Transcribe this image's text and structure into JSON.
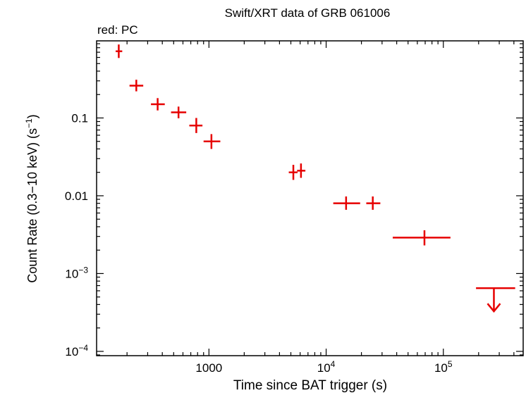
{
  "chart_data": {
    "type": "scatter",
    "title": "Swift/XRT data of GRB 061006",
    "subtitle": "red: PC",
    "xlabel": "Time since BAT trigger (s)",
    "ylabel": "Count Rate (0.3−10 keV) (s",
    "ylabel_sup": "−1",
    "ylabel_close": ")",
    "x_scale": "log",
    "y_scale": "log",
    "xlim": [
      110,
      480000
    ],
    "ylim": [
      8.8e-05,
      0.98
    ],
    "x_ticks": [
      {
        "value": 1000,
        "mantissa": "1000",
        "exp": ""
      },
      {
        "value": 10000,
        "mantissa": "10",
        "exp": "4"
      },
      {
        "value": 100000,
        "mantissa": "10",
        "exp": "5"
      }
    ],
    "y_ticks": [
      {
        "value": 0.1,
        "mantissa": "0.1",
        "exp": ""
      },
      {
        "value": 0.01,
        "mantissa": "0.01",
        "exp": ""
      },
      {
        "value": 0.001,
        "mantissa": "10",
        "exp": "−3"
      },
      {
        "value": 0.0001,
        "mantissa": "10",
        "exp": "−4"
      }
    ],
    "grid": false,
    "color": "#e60000",
    "series": [
      {
        "mode": "PC",
        "points": [
          {
            "x": 170,
            "xlo": 160,
            "xhi": 182,
            "y": 0.72,
            "ylo": 0.59,
            "yhi": 0.88
          },
          {
            "x": 240,
            "xlo": 210,
            "xhi": 275,
            "y": 0.26,
            "ylo": 0.22,
            "yhi": 0.31
          },
          {
            "x": 365,
            "xlo": 320,
            "xhi": 420,
            "y": 0.15,
            "ylo": 0.125,
            "yhi": 0.18
          },
          {
            "x": 550,
            "xlo": 475,
            "xhi": 640,
            "y": 0.118,
            "ylo": 0.099,
            "yhi": 0.14
          },
          {
            "x": 780,
            "xlo": 680,
            "xhi": 880,
            "y": 0.08,
            "ylo": 0.064,
            "yhi": 0.1
          },
          {
            "x": 1050,
            "xlo": 900,
            "xhi": 1250,
            "y": 0.05,
            "ylo": 0.04,
            "yhi": 0.062
          },
          {
            "x": 5250,
            "xlo": 4800,
            "xhi": 5700,
            "y": 0.02,
            "ylo": 0.016,
            "yhi": 0.025
          },
          {
            "x": 6100,
            "xlo": 5650,
            "xhi": 6650,
            "y": 0.021,
            "ylo": 0.017,
            "yhi": 0.026
          },
          {
            "x": 14800,
            "xlo": 11500,
            "xhi": 19500,
            "y": 0.008,
            "ylo": 0.0066,
            "yhi": 0.0098
          },
          {
            "x": 25000,
            "xlo": 22000,
            "xhi": 29000,
            "y": 0.008,
            "ylo": 0.0066,
            "yhi": 0.0098
          },
          {
            "x": 69000,
            "xlo": 37000,
            "xhi": 115000,
            "y": 0.0029,
            "ylo": 0.0023,
            "yhi": 0.0036
          }
        ],
        "upper_limits": [
          {
            "x": 270000,
            "xlo": 190000,
            "xhi": 410000,
            "y": 0.00065
          }
        ]
      }
    ]
  }
}
